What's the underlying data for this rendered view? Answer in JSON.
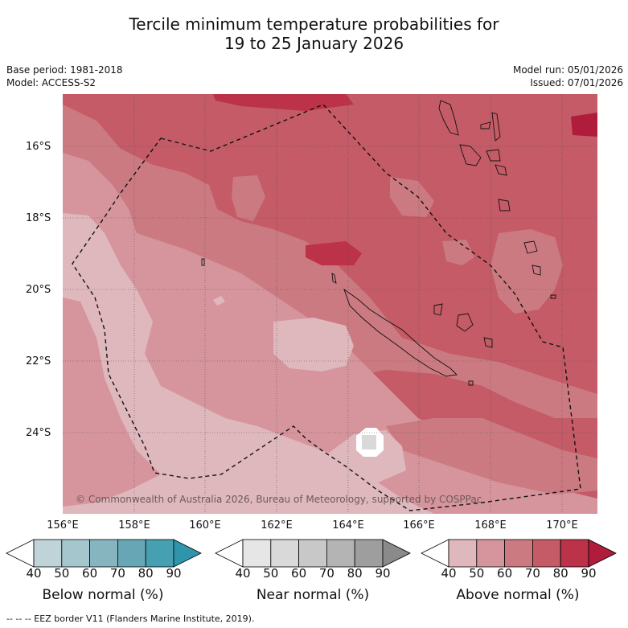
{
  "title_line1": "Tercile minimum temperature probabilities for",
  "title_line2": "19 to 25 January 2026",
  "base_period": "Base period: 1981-2018",
  "model": "Model: ACCESS-S2",
  "model_run": "Model run: 05/01/2026",
  "issued": "Issued: 07/01/2026",
  "copyright": "© Commonwealth of Australia 2026, Bureau of Meteorology, supported by COSPPac",
  "footer": "--  --  -- EEZ border V11 (Flanders Marine Institute, 2019).",
  "lat_ticks": [
    "16°S",
    "18°S",
    "20°S",
    "22°S",
    "24°S"
  ],
  "lon_ticks": [
    "156°E",
    "158°E",
    "160°E",
    "162°E",
    "164°E",
    "166°E",
    "168°E",
    "170°E"
  ],
  "legends": [
    {
      "title": "Below normal (%)",
      "colors": [
        "#ffffff",
        "#bfd3d9",
        "#a5c6cc",
        "#86b4bf",
        "#67a6b4",
        "#47a0b1",
        "#2e95ad"
      ]
    },
    {
      "title": "Near normal (%)",
      "colors": [
        "#ffffff",
        "#e6e6e6",
        "#d9d9d9",
        "#c8c8c8",
        "#b4b4b4",
        "#9e9e9e",
        "#8a8a8a"
      ]
    },
    {
      "title": "Above normal (%)",
      "colors": [
        "#ffffff",
        "#dfb8be",
        "#d6959c",
        "#cc7a81",
        "#c45b66",
        "#bc3249",
        "#b01c3c"
      ]
    }
  ],
  "legend_ticks": [
    "40",
    "50",
    "60",
    "70",
    "80",
    "90"
  ],
  "map_colors": {
    "p50": "#dfb8be",
    "p60": "#d6959c",
    "p70": "#cc7a81",
    "p80": "#c45b66",
    "p90": "#bc3249",
    "p95": "#b01c3c",
    "near": "#d9d9d9"
  }
}
